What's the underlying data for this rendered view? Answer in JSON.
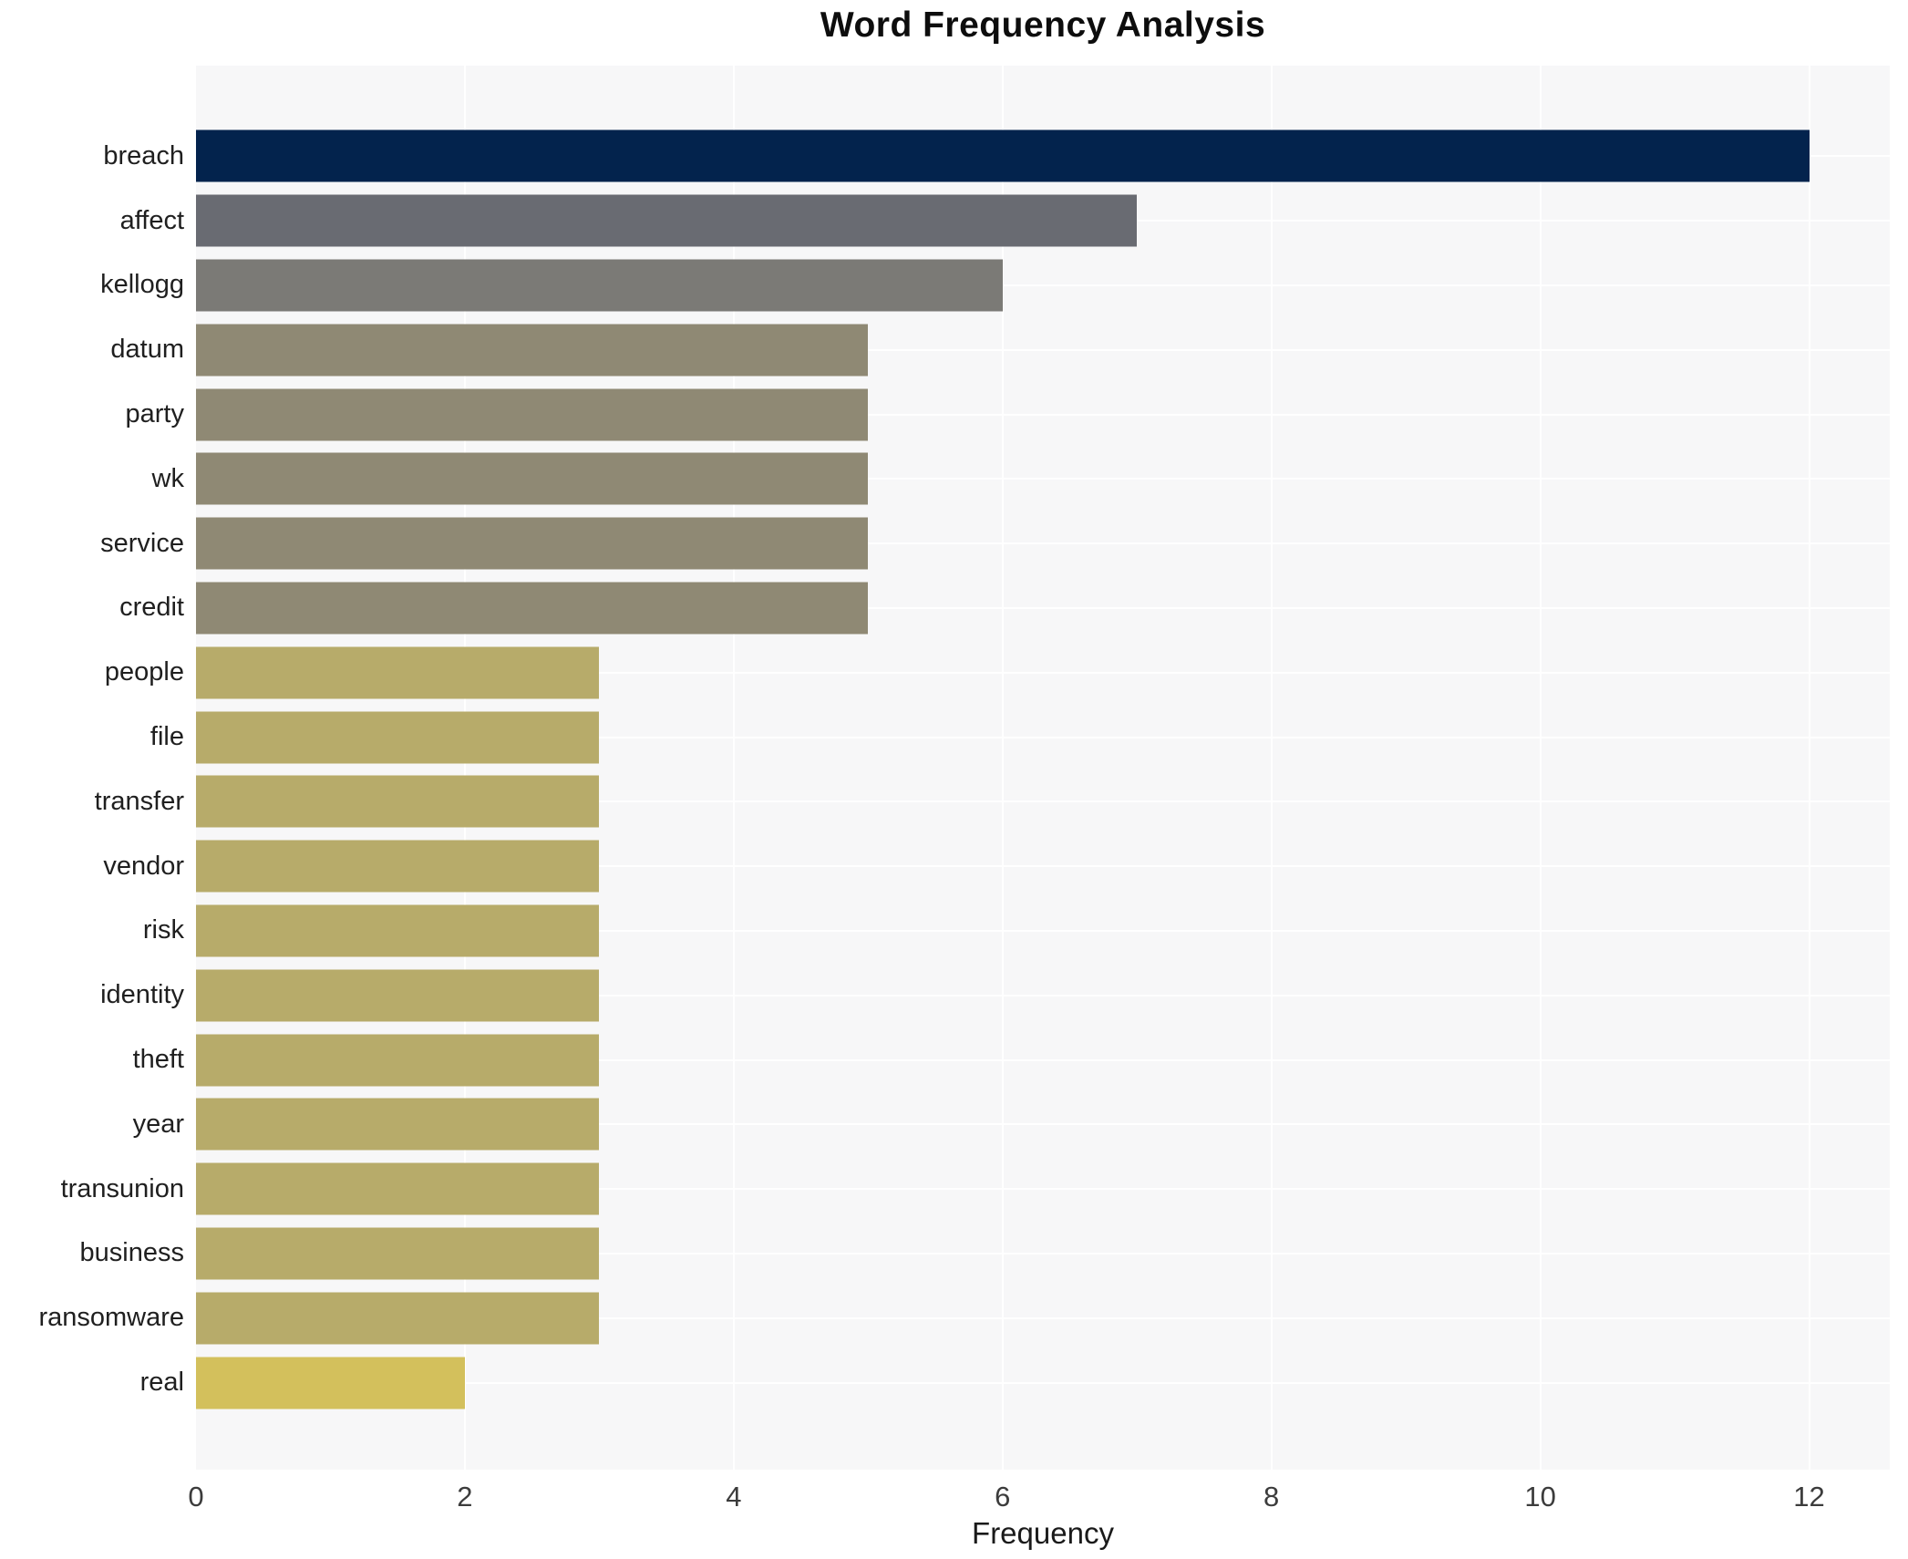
{
  "chart_data": {
    "type": "bar",
    "orientation": "horizontal",
    "title": "Word Frequency Analysis",
    "xlabel": "Frequency",
    "ylabel": "",
    "xlim": [
      0,
      12.6
    ],
    "xticks": [
      0,
      2,
      4,
      6,
      8,
      10,
      12
    ],
    "grid": true,
    "legend": "none",
    "plot_bg_color": "#f7f7f8",
    "grid_color": "#ffffff",
    "categories": [
      "breach",
      "affect",
      "kellogg",
      "datum",
      "party",
      "wk",
      "service",
      "credit",
      "people",
      "file",
      "transfer",
      "vendor",
      "risk",
      "identity",
      "theft",
      "year",
      "transunion",
      "business",
      "ransomware",
      "real"
    ],
    "values": [
      12,
      7,
      6,
      5,
      5,
      5,
      5,
      5,
      3,
      3,
      3,
      3,
      3,
      3,
      3,
      3,
      3,
      3,
      3,
      2
    ],
    "bar_colors": [
      "#03234d",
      "#696b72",
      "#7b7a76",
      "#8f8974",
      "#8f8974",
      "#8f8974",
      "#8f8974",
      "#8f8974",
      "#b7ab6a",
      "#b7ab6a",
      "#b7ab6a",
      "#b7ab6a",
      "#b7ab6a",
      "#b7ab6a",
      "#b7ab6a",
      "#b7ab6a",
      "#b7ab6a",
      "#b7ab6a",
      "#b7ab6a",
      "#d3c05c"
    ]
  }
}
